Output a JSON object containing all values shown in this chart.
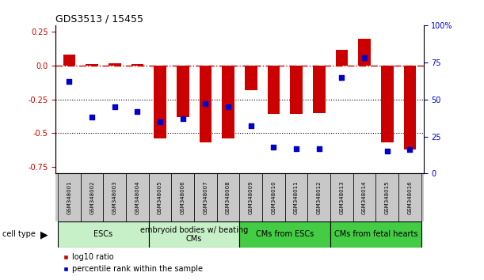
{
  "title": "GDS3513 / 15455",
  "samples": [
    "GSM348001",
    "GSM348002",
    "GSM348003",
    "GSM348004",
    "GSM348005",
    "GSM348006",
    "GSM348007",
    "GSM348008",
    "GSM348009",
    "GSM348010",
    "GSM348011",
    "GSM348012",
    "GSM348013",
    "GSM348014",
    "GSM348015",
    "GSM348016"
  ],
  "log10_ratio": [
    0.08,
    0.01,
    0.02,
    0.01,
    -0.54,
    -0.38,
    -0.57,
    -0.54,
    -0.18,
    -0.36,
    -0.36,
    -0.35,
    0.12,
    0.2,
    -0.57,
    -0.62
  ],
  "percentile_rank": [
    62,
    38,
    45,
    42,
    35,
    37,
    47,
    45,
    32,
    18,
    17,
    17,
    65,
    78,
    15,
    16
  ],
  "cell_type_groups": [
    {
      "label": "ESCs",
      "start": 0,
      "end": 3,
      "color": "#c8f0c8"
    },
    {
      "label": "embryoid bodies w/ beating\nCMs",
      "start": 4,
      "end": 7,
      "color": "#c8f0c8"
    },
    {
      "label": "CMs from ESCs",
      "start": 8,
      "end": 11,
      "color": "#44cc44"
    },
    {
      "label": "CMs from fetal hearts",
      "start": 12,
      "end": 15,
      "color": "#44cc44"
    }
  ],
  "ylim_left": [
    -0.8,
    0.3
  ],
  "ylim_right": [
    0,
    100
  ],
  "yticks_left": [
    0.25,
    0.0,
    -0.25,
    -0.5,
    -0.75
  ],
  "yticks_right": [
    0,
    25,
    50,
    75,
    100
  ],
  "hline_y": 0.0,
  "dotted_lines": [
    -0.25,
    -0.5
  ],
  "bar_color": "#CC0000",
  "scatter_color": "#0000CC",
  "bar_width": 0.55,
  "sample_bg_color": "#C8C8C8",
  "legend_items": [
    {
      "label": "log10 ratio",
      "color": "#CC0000"
    },
    {
      "label": "percentile rank within the sample",
      "color": "#0000CC"
    }
  ],
  "title_fontsize": 9,
  "axis_fontsize": 7,
  "sample_fontsize": 5,
  "celltype_fontsize": 7,
  "legend_fontsize": 7
}
